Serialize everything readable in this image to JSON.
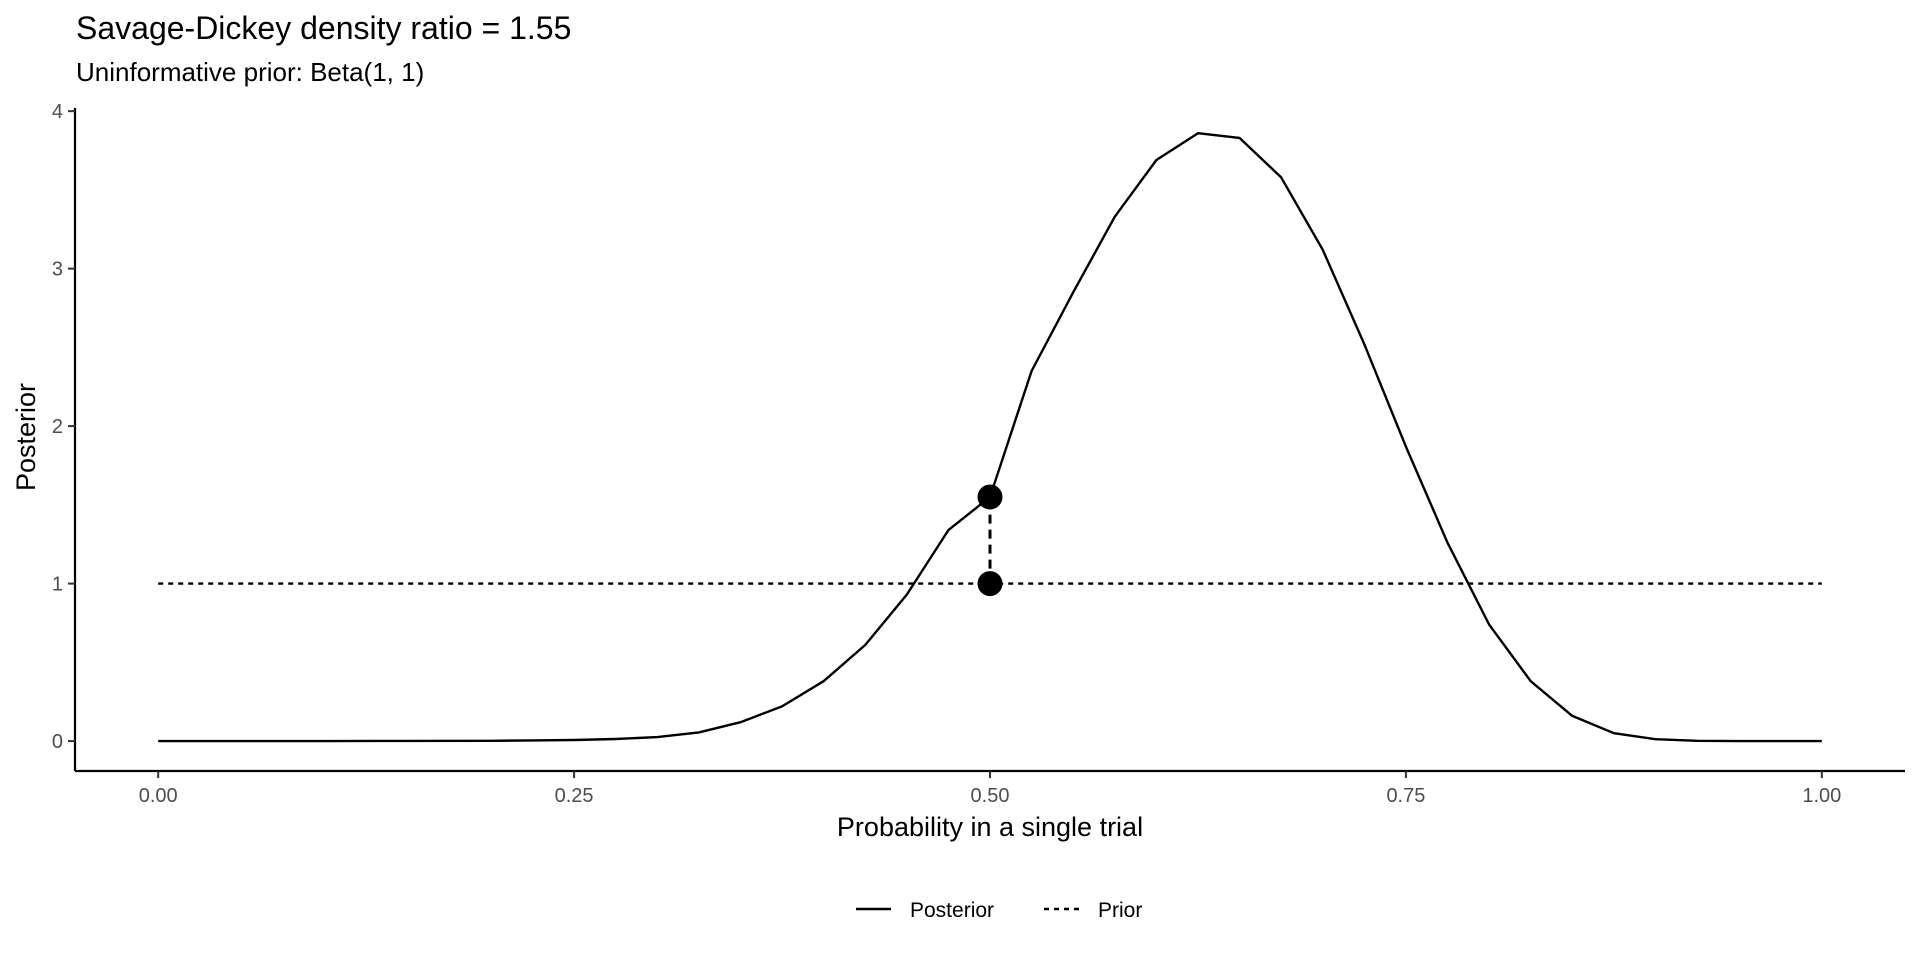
{
  "chart_data": {
    "type": "line",
    "title": "Savage-Dickey density ratio = 1.55",
    "subtitle": "Uninformative prior: Beta(1, 1)",
    "xlabel": "Probability in a single trial",
    "ylabel": "Posterior",
    "xlim": [
      -0.05,
      1.05
    ],
    "ylim": [
      -0.19,
      4.02
    ],
    "x_ticks": [
      0,
      0.25,
      0.5,
      0.75,
      1.0
    ],
    "x_tick_labels": [
      "0.00",
      "0.25",
      "0.50",
      "0.75",
      "1.00"
    ],
    "y_ticks": [
      0,
      1,
      2,
      3,
      4
    ],
    "y_tick_labels": [
      "0",
      "1",
      "2",
      "3",
      "4"
    ],
    "grid": false,
    "legend_position": "bottom",
    "series": [
      {
        "name": "Posterior",
        "linetype": "solid",
        "color": "#000000",
        "x": [
          0,
          0.05,
          0.1,
          0.15,
          0.2,
          0.225,
          0.25,
          0.275,
          0.3,
          0.325,
          0.35,
          0.375,
          0.4,
          0.425,
          0.45,
          0.475,
          0.5,
          0.525,
          0.55,
          0.575,
          0.6,
          0.625,
          0.65,
          0.675,
          0.7,
          0.725,
          0.75,
          0.775,
          0.8,
          0.825,
          0.85,
          0.875,
          0.9,
          0.925,
          0.95,
          0.975,
          1.0
        ],
        "y": [
          0,
          0,
          0,
          0.001,
          0.002,
          0.004,
          0.007,
          0.013,
          0.025,
          0.055,
          0.12,
          0.22,
          0.38,
          0.61,
          0.93,
          1.34,
          1.55,
          2.35,
          2.85,
          3.33,
          3.69,
          3.86,
          3.83,
          3.58,
          3.12,
          2.52,
          1.87,
          1.26,
          0.74,
          0.38,
          0.16,
          0.05,
          0.012,
          0.002,
          0,
          0,
          0
        ]
      },
      {
        "name": "Prior",
        "linetype": "dashed",
        "color": "#000000",
        "x": [
          0,
          1.0
        ],
        "y": [
          1,
          1
        ]
      }
    ],
    "points": [
      {
        "x": 0.5,
        "y": 1.55
      },
      {
        "x": 0.5,
        "y": 1.0
      }
    ],
    "connector": {
      "x": 0.5,
      "y_from": 1.0,
      "y_to": 1.55,
      "linetype": "dashed"
    }
  }
}
